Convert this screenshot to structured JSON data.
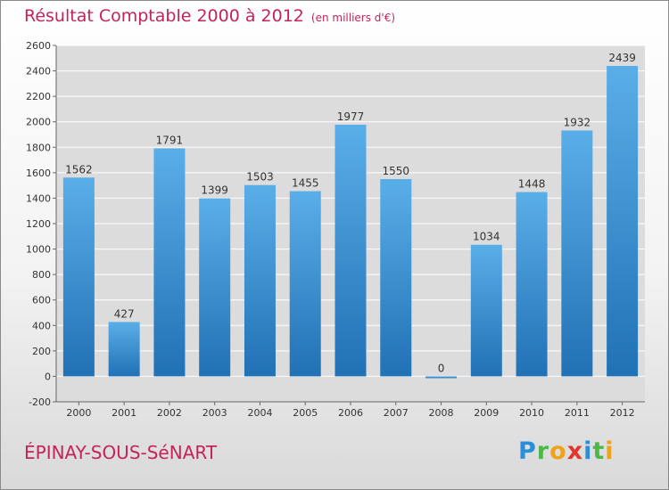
{
  "header": {
    "title": "Résultat Comptable 2000 à 2012",
    "unit": "(en milliers d'€)"
  },
  "footer": {
    "place": "ÉPINAY-SOUS-SéNART",
    "logo_letters": [
      {
        "char": "P",
        "color": "#2a8fd8"
      },
      {
        "char": "r",
        "color": "#4cb848"
      },
      {
        "char": "o",
        "color": "#f0a21a"
      },
      {
        "char": "x",
        "color": "#e2352b"
      },
      {
        "char": "i",
        "color": "#2a8fd8"
      },
      {
        "char": "t",
        "color": "#4cb848"
      },
      {
        "char": "i",
        "color": "#f0a21a"
      }
    ]
  },
  "chart_data": {
    "type": "bar",
    "title": "Résultat Comptable 2000 à 2012",
    "subtitle": "(en milliers d'€)",
    "categories": [
      "2000",
      "2001",
      "2002",
      "2003",
      "2004",
      "2005",
      "2006",
      "2007",
      "2008",
      "2009",
      "2010",
      "2011",
      "2012"
    ],
    "values": [
      1562,
      427,
      1791,
      1399,
      1503,
      1455,
      1977,
      1550,
      0,
      1034,
      1448,
      1932,
      2439
    ],
    "ylim": [
      -200,
      2600
    ],
    "yticks": [
      -200,
      0,
      200,
      400,
      600,
      800,
      1000,
      1200,
      1400,
      1600,
      1800,
      2000,
      2200,
      2400,
      2600
    ],
    "grid": true,
    "colors": {
      "bar_top": "#5aaee8",
      "bar_bottom": "#2171b5",
      "plot_bg": "#dcdcdc",
      "grid": "#ffffff"
    }
  }
}
